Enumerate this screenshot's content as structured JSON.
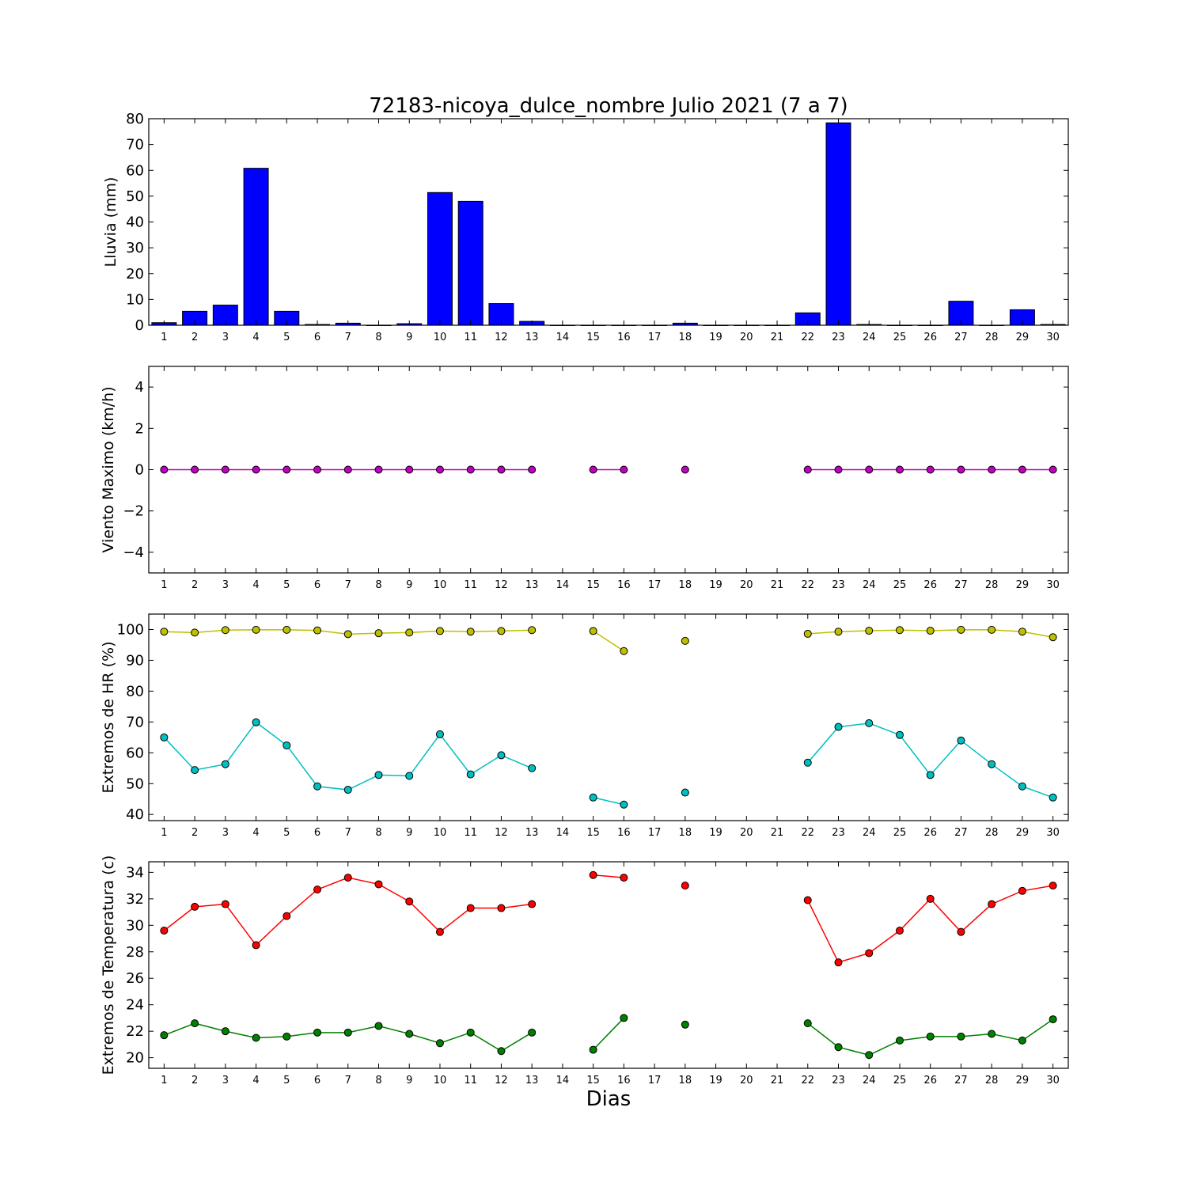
{
  "chart_data": {
    "title": "72183-nicoya_dulce_nombre Julio 2021  (7 a 7)",
    "xlabel": "Dias",
    "x": [
      1,
      2,
      3,
      4,
      5,
      6,
      7,
      8,
      9,
      10,
      11,
      12,
      13,
      14,
      15,
      16,
      17,
      18,
      19,
      20,
      21,
      22,
      23,
      24,
      25,
      26,
      27,
      28,
      29,
      30
    ],
    "panels": [
      {
        "type": "bar",
        "ylabel": "Lluvia (mm)",
        "ylim": [
          0,
          80
        ],
        "yticks": [
          0,
          10,
          20,
          30,
          40,
          50,
          60,
          70,
          80
        ],
        "yticklabels": [
          "0",
          "10",
          "20",
          "30",
          "40",
          "50",
          "60",
          "70",
          "80"
        ],
        "series": [
          {
            "color": "#0000ff",
            "values": [
              1.0,
              5.4,
              7.8,
              60.8,
              5.4,
              0.3,
              0.8,
              0.0,
              0.6,
              51.4,
              48.0,
              8.4,
              1.5,
              0.0,
              0.0,
              0.0,
              0.0,
              0.8,
              0.0,
              0.0,
              0.0,
              4.8,
              78.4,
              0.3,
              0.0,
              0.0,
              9.3,
              0.0,
              6.0,
              0.3
            ]
          }
        ]
      },
      {
        "type": "line",
        "ylabel": "Viento Maximo (km/h)",
        "ylim": [
          -5,
          5
        ],
        "yticks": [
          -4,
          -2,
          0,
          2,
          4
        ],
        "yticklabels": [
          "−4",
          "−2",
          "0",
          "2",
          "4"
        ],
        "series": [
          {
            "color": "#bf00bf",
            "values": [
              0,
              0,
              0,
              0,
              0,
              0,
              0,
              0,
              0,
              0,
              0,
              0,
              0,
              null,
              0,
              0,
              null,
              0,
              null,
              null,
              null,
              0,
              0,
              0,
              0,
              0,
              0,
              0,
              0,
              0
            ]
          }
        ]
      },
      {
        "type": "line",
        "ylabel": "Extremos de HR (%)",
        "ylim": [
          38,
          105
        ],
        "yticks": [
          40,
          50,
          60,
          70,
          80,
          90,
          100
        ],
        "yticklabels": [
          "40",
          "50",
          "60",
          "70",
          "80",
          "90",
          "100"
        ],
        "series": [
          {
            "color": "#bfbf00",
            "values": [
              99.3,
              99.0,
              99.8,
              99.9,
              99.9,
              99.7,
              98.5,
              98.8,
              99.0,
              99.5,
              99.3,
              99.5,
              99.8,
              null,
              99.5,
              93.0,
              null,
              96.3,
              null,
              null,
              null,
              98.6,
              99.3,
              99.6,
              99.8,
              99.6,
              99.9,
              99.9,
              99.3,
              97.5
            ]
          },
          {
            "color": "#00bfbf",
            "values": [
              65.0,
              54.4,
              56.3,
              69.9,
              62.4,
              49.1,
              48.0,
              52.8,
              52.5,
              66.0,
              53.0,
              59.2,
              55.0,
              null,
              45.5,
              43.2,
              null,
              47.1,
              null,
              null,
              null,
              56.8,
              68.4,
              69.6,
              65.8,
              52.8,
              64.0,
              56.3,
              49.1,
              45.5
            ]
          }
        ]
      },
      {
        "type": "line",
        "ylabel": "Extremos de Temperatura (c)",
        "ylim": [
          19.2,
          34.8
        ],
        "yticks": [
          20,
          22,
          24,
          26,
          28,
          30,
          32,
          34
        ],
        "yticklabels": [
          "20",
          "22",
          "24",
          "26",
          "28",
          "30",
          "32",
          "34"
        ],
        "series": [
          {
            "color": "#ff0000",
            "values": [
              29.6,
              31.4,
              31.6,
              28.5,
              30.7,
              32.7,
              33.6,
              33.1,
              31.8,
              29.5,
              31.3,
              31.3,
              31.6,
              null,
              33.8,
              33.6,
              null,
              33.0,
              null,
              null,
              null,
              31.9,
              27.2,
              27.9,
              29.6,
              32.0,
              29.5,
              31.6,
              32.6,
              33.0
            ]
          },
          {
            "color": "#007f00",
            "values": [
              21.7,
              22.6,
              22.0,
              21.5,
              21.6,
              21.9,
              21.9,
              22.4,
              21.8,
              21.1,
              21.9,
              20.5,
              21.9,
              null,
              20.6,
              23.0,
              null,
              22.5,
              null,
              null,
              null,
              22.6,
              20.8,
              20.2,
              21.3,
              21.6,
              21.6,
              21.8,
              21.3,
              22.9
            ]
          }
        ]
      }
    ]
  }
}
